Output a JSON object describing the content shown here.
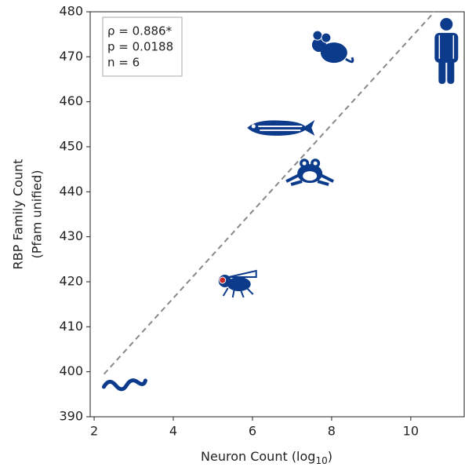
{
  "chart_data": {
    "type": "scatter",
    "x_label": [
      "Neuron Count (log",
      "10",
      ")"
    ],
    "y_label": [
      "RBP Family Count",
      "(Pfam unified)"
    ],
    "annotations": [
      "ρ = 0.886*",
      "p = 0.0188",
      "n = 6"
    ],
    "x": [
      2.8,
      5.5,
      7.45,
      6.7,
      8.0,
      10.9
    ],
    "values": [
      397,
      420,
      444.4,
      454.2,
      471.6,
      471.3
    ],
    "color": "#0d3b8c",
    "trend": {
      "x": [
        2.25,
        10.6
      ],
      "values": [
        399.5,
        480
      ],
      "color": "#888888"
    },
    "xlim": [
      1.9,
      11.35
    ],
    "xticks": [
      2,
      4,
      6,
      8,
      10
    ],
    "ylim": [
      390,
      480
    ],
    "yticks": [
      390,
      400,
      410,
      420,
      430,
      440,
      450,
      460,
      470,
      480
    ]
  }
}
